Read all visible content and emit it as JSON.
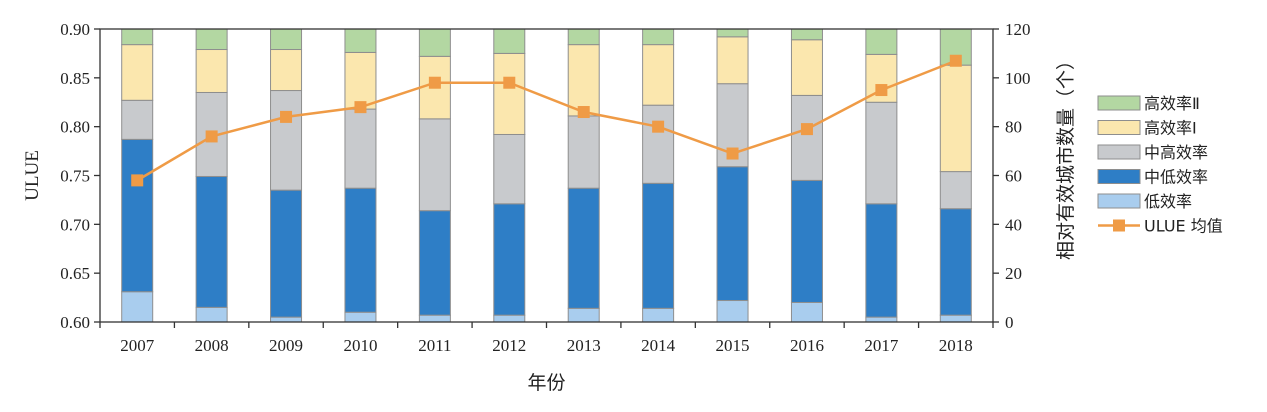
{
  "chart_data": {
    "type": "bar",
    "subtype": "stacked-bar-with-line",
    "categories": [
      "2007",
      "2008",
      "2009",
      "2010",
      "2011",
      "2012",
      "2013",
      "2014",
      "2015",
      "2016",
      "2017",
      "2018"
    ],
    "xlabel": "年份",
    "ylabel_left": "ULUE",
    "ylabel_right": "相对有效城市数量（个）",
    "ylim_left": [
      0.6,
      0.9
    ],
    "ylim_right": [
      0,
      120
    ],
    "yticks_left": [
      "0.60",
      "0.65",
      "0.70",
      "0.75",
      "0.80",
      "0.85",
      "0.90"
    ],
    "yticks_right": [
      "0",
      "20",
      "40",
      "60",
      "80",
      "100",
      "120"
    ],
    "series": [
      {
        "name": "低效率",
        "axis": "left",
        "color": "#a9cdee",
        "values": [
          0.631,
          0.615,
          0.605,
          0.61,
          0.607,
          0.607,
          0.614,
          0.614,
          0.622,
          0.62,
          0.605,
          0.607
        ]
      },
      {
        "name": "中低效率",
        "axis": "left",
        "color": "#2e7ec6",
        "values": [
          0.156,
          0.134,
          0.13,
          0.127,
          0.107,
          0.114,
          0.123,
          0.128,
          0.137,
          0.125,
          0.116,
          0.109
        ]
      },
      {
        "name": "中高效率",
        "axis": "left",
        "color": "#c8cacd",
        "values": [
          0.04,
          0.086,
          0.102,
          0.081,
          0.094,
          0.071,
          0.074,
          0.08,
          0.085,
          0.087,
          0.104,
          0.038
        ]
      },
      {
        "name": "高效率Ⅰ",
        "axis": "left",
        "color": "#fbe7ae",
        "values": [
          0.057,
          0.044,
          0.042,
          0.058,
          0.064,
          0.083,
          0.073,
          0.062,
          0.048,
          0.057,
          0.049,
          0.109
        ]
      },
      {
        "name": "高效率Ⅱ",
        "axis": "left",
        "color": "#b3d7a2",
        "values": [
          0.016,
          0.021,
          0.021,
          0.024,
          0.028,
          0.025,
          0.016,
          0.016,
          0.01,
          0.011,
          0.026,
          0.037
        ]
      },
      {
        "name": "ULUE 均值",
        "axis": "right",
        "type": "line",
        "color": "#ef9b46",
        "values": [
          58,
          76,
          84,
          88,
          98,
          98,
          86,
          80,
          69,
          79,
          95,
          107
        ]
      }
    ],
    "legend_placement": "right",
    "legend_order": [
      "高效率Ⅱ",
      "高效率Ⅰ",
      "中高效率",
      "中低效率",
      "低效率",
      "ULUE 均值"
    ],
    "grid": false
  }
}
